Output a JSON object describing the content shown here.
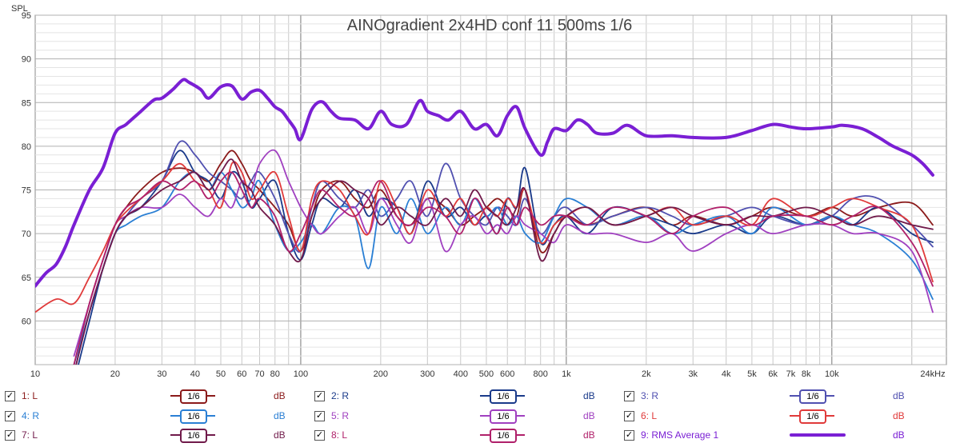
{
  "chart_data": {
    "type": "line",
    "title": "AINOgradient 2x4HD conf 11 500ms 1/6",
    "ylabel": "SPL",
    "x_scale": "log",
    "xlim": [
      10,
      27000
    ],
    "ylim": [
      55,
      95
    ],
    "y_ticks": [
      60,
      65,
      70,
      75,
      80,
      85,
      90,
      95
    ],
    "x_ticks": [
      {
        "v": 10,
        "label": "10"
      },
      {
        "v": 20,
        "label": "20"
      },
      {
        "v": 30,
        "label": "30"
      },
      {
        "v": 40,
        "label": "40"
      },
      {
        "v": 50,
        "label": "50"
      },
      {
        "v": 60,
        "label": "60"
      },
      {
        "v": 70,
        "label": "70"
      },
      {
        "v": 80,
        "label": "80"
      },
      {
        "v": 100,
        "label": "100"
      },
      {
        "v": 200,
        "label": "200"
      },
      {
        "v": 300,
        "label": "300"
      },
      {
        "v": 400,
        "label": "400"
      },
      {
        "v": 500,
        "label": "500"
      },
      {
        "v": 600,
        "label": "600"
      },
      {
        "v": 800,
        "label": "800"
      },
      {
        "v": 1000,
        "label": "1k"
      },
      {
        "v": 2000,
        "label": "2k"
      },
      {
        "v": 3000,
        "label": "3k"
      },
      {
        "v": 4000,
        "label": "4k"
      },
      {
        "v": 5000,
        "label": "5k"
      },
      {
        "v": 6000,
        "label": "6k"
      },
      {
        "v": 7000,
        "label": "7k"
      },
      {
        "v": 8000,
        "label": "8k"
      },
      {
        "v": 10000,
        "label": "10k"
      },
      {
        "v": 24000,
        "label": "24kHz"
      }
    ],
    "grid": true,
    "legend_position": "bottom",
    "series": [
      {
        "name": "1: L",
        "color": "#8b1a1a",
        "width": 1.8,
        "x": [
          14,
          16,
          18,
          20,
          22,
          25,
          30,
          35,
          40,
          45,
          50,
          55,
          60,
          65,
          70,
          80,
          90,
          100,
          110,
          120,
          140,
          160,
          180,
          200,
          230,
          260,
          300,
          350,
          400,
          450,
          500,
          550,
          600,
          650,
          700,
          800,
          900,
          1000,
          1200,
          1500,
          2000,
          2500,
          3000,
          4000,
          5000,
          6000,
          8000,
          10000,
          12000,
          15000,
          20000,
          24000
        ],
        "y": [
          55,
          62,
          67,
          71,
          73,
          75,
          77,
          77.5,
          77,
          76,
          78,
          79.5,
          78,
          76,
          75,
          73,
          71,
          68,
          72,
          75,
          76,
          74,
          73,
          75,
          72,
          71,
          74,
          73,
          71,
          72,
          73,
          74,
          73,
          72,
          75,
          68,
          70,
          72,
          71,
          72,
          73,
          71,
          72,
          71,
          72,
          73,
          72,
          73,
          72,
          73,
          73.5,
          71
        ]
      },
      {
        "name": "2: R",
        "color": "#1a3a8a",
        "width": 1.8,
        "x": [
          14,
          16,
          18,
          20,
          22,
          25,
          30,
          35,
          40,
          45,
          50,
          55,
          60,
          65,
          70,
          80,
          90,
          100,
          110,
          120,
          140,
          160,
          180,
          200,
          230,
          260,
          300,
          350,
          400,
          450,
          500,
          550,
          600,
          650,
          700,
          800,
          900,
          1000,
          1200,
          1500,
          2000,
          2500,
          3000,
          4000,
          5000,
          6000,
          8000,
          10000,
          12000,
          15000,
          20000,
          24000
        ],
        "y": [
          53,
          60,
          66,
          70,
          72,
          73,
          76,
          79.5,
          77,
          76,
          74,
          77,
          76,
          73,
          74,
          76,
          70,
          67,
          71,
          74,
          73,
          75,
          72,
          74,
          73,
          70,
          76,
          72,
          73,
          71,
          72,
          70,
          74,
          73,
          77.5,
          69,
          71,
          72,
          70,
          73,
          72,
          71,
          70,
          71,
          70,
          72,
          71,
          72,
          71,
          73,
          70,
          69
        ]
      },
      {
        "name": "3: R",
        "color": "#5050b0",
        "width": 1.8,
        "x": [
          14,
          16,
          18,
          20,
          22,
          25,
          30,
          35,
          40,
          45,
          50,
          55,
          60,
          65,
          70,
          80,
          90,
          100,
          110,
          120,
          140,
          160,
          180,
          200,
          230,
          260,
          300,
          350,
          400,
          450,
          500,
          550,
          600,
          650,
          700,
          800,
          900,
          1000,
          1200,
          1500,
          2000,
          2500,
          3000,
          4000,
          5000,
          6000,
          8000,
          10000,
          12000,
          15000,
          20000,
          24000
        ],
        "y": [
          54,
          61,
          66,
          70,
          72,
          74,
          76,
          80.5,
          79,
          77,
          76,
          75,
          74,
          76,
          77,
          74,
          70,
          68,
          73,
          76,
          74,
          73,
          75,
          72,
          74,
          76,
          72,
          78,
          74,
          72,
          71,
          73,
          72,
          71,
          74,
          70,
          72,
          73,
          71,
          72,
          73,
          72,
          71,
          72,
          73,
          72,
          71,
          72,
          74,
          74,
          71,
          68.5
        ]
      },
      {
        "name": "4: R",
        "color": "#2a7fd4",
        "width": 1.8,
        "x": [
          14,
          16,
          18,
          20,
          22,
          25,
          30,
          35,
          40,
          45,
          50,
          55,
          60,
          65,
          70,
          80,
          90,
          100,
          110,
          120,
          140,
          160,
          180,
          200,
          230,
          260,
          300,
          350,
          400,
          450,
          500,
          550,
          600,
          650,
          700,
          800,
          900,
          1000,
          1200,
          1500,
          2000,
          2500,
          3000,
          4000,
          5000,
          6000,
          8000,
          10000,
          12000,
          15000,
          20000,
          24000
        ],
        "y": [
          55,
          61,
          66,
          70,
          71,
          72,
          73,
          76,
          77,
          75,
          77,
          75,
          73,
          74,
          76,
          71,
          68,
          69,
          71,
          70,
          73,
          72,
          66,
          73,
          70,
          74,
          70,
          73,
          71,
          74,
          72,
          73,
          71,
          72,
          70,
          69,
          72,
          74,
          73,
          71,
          72,
          70,
          71,
          72,
          70,
          73,
          71,
          72,
          71,
          70,
          67,
          62.5
        ]
      },
      {
        "name": "5: R",
        "color": "#a040c0",
        "width": 1.8,
        "x": [
          14,
          16,
          18,
          20,
          22,
          25,
          30,
          35,
          40,
          45,
          50,
          55,
          60,
          65,
          70,
          80,
          90,
          100,
          110,
          120,
          140,
          160,
          180,
          200,
          230,
          260,
          300,
          350,
          400,
          450,
          500,
          550,
          600,
          650,
          700,
          800,
          900,
          1000,
          1200,
          1500,
          2000,
          2500,
          3000,
          4000,
          5000,
          6000,
          8000,
          10000,
          12000,
          15000,
          20000,
          24000
        ],
        "y": [
          56,
          62,
          67,
          71,
          72,
          73,
          73,
          74.5,
          73,
          72,
          74,
          73,
          76,
          75,
          78,
          79.5,
          76,
          73,
          71,
          70,
          72,
          73,
          70,
          74,
          71,
          69,
          74,
          68,
          71,
          72,
          70,
          71,
          70,
          72,
          71,
          70,
          69,
          71,
          70,
          70,
          69,
          70,
          68,
          70,
          71,
          70,
          71,
          71,
          70,
          70,
          68,
          61
        ]
      },
      {
        "name": "6: L",
        "color": "#e03a3a",
        "width": 1.8,
        "x": [
          10,
          12,
          14,
          16,
          18,
          20,
          22,
          25,
          30,
          35,
          40,
          45,
          50,
          55,
          60,
          65,
          70,
          80,
          90,
          100,
          110,
          120,
          140,
          160,
          180,
          200,
          230,
          260,
          300,
          350,
          400,
          450,
          500,
          550,
          600,
          650,
          700,
          800,
          900,
          1000,
          1200,
          1500,
          2000,
          2500,
          3000,
          4000,
          5000,
          6000,
          8000,
          10000,
          12000,
          15000,
          20000,
          24000
        ],
        "y": [
          61,
          62.5,
          62,
          65,
          68,
          71,
          72.5,
          74,
          76,
          78,
          76,
          75,
          73,
          78,
          77,
          74,
          75,
          77,
          72,
          68,
          74,
          76,
          75,
          72,
          70,
          76,
          73,
          70,
          75,
          72,
          74,
          71,
          73,
          72,
          74,
          73,
          75,
          69,
          71,
          72,
          73,
          71,
          72,
          73,
          71,
          72,
          71,
          74,
          72,
          73,
          74,
          73,
          71,
          64.5
        ]
      },
      {
        "name": "7: L",
        "color": "#701a4a",
        "width": 1.8,
        "x": [
          14,
          16,
          18,
          20,
          22,
          25,
          30,
          35,
          40,
          45,
          50,
          55,
          60,
          65,
          70,
          80,
          90,
          100,
          110,
          120,
          140,
          160,
          180,
          200,
          230,
          260,
          300,
          350,
          400,
          450,
          500,
          550,
          600,
          650,
          700,
          800,
          900,
          1000,
          1200,
          1500,
          2000,
          2500,
          3000,
          4000,
          5000,
          6000,
          8000,
          10000,
          12000,
          15000,
          20000,
          24000
        ],
        "y": [
          54,
          61,
          66,
          70,
          72,
          73,
          75,
          76,
          77,
          75,
          77,
          78.5,
          76,
          75,
          73,
          71,
          68,
          67,
          72,
          74,
          76,
          75,
          74,
          71,
          73,
          72,
          71,
          74,
          72,
          75,
          73,
          72,
          71,
          73,
          75,
          67,
          70,
          72,
          73,
          71,
          72,
          73,
          72,
          71,
          72,
          72,
          73,
          72,
          71,
          72,
          71,
          70.5
        ]
      },
      {
        "name": "8: L",
        "color": "#b0206a",
        "width": 1.8,
        "x": [
          14,
          16,
          18,
          20,
          22,
          25,
          30,
          35,
          40,
          45,
          50,
          55,
          60,
          65,
          70,
          80,
          90,
          100,
          110,
          120,
          140,
          160,
          180,
          200,
          230,
          260,
          300,
          350,
          400,
          450,
          500,
          550,
          600,
          650,
          700,
          800,
          900,
          1000,
          1200,
          1500,
          2000,
          2500,
          3000,
          4000,
          5000,
          6000,
          8000,
          10000,
          12000,
          15000,
          20000,
          24000
        ],
        "y": [
          55,
          62,
          67,
          71,
          73,
          74,
          76,
          75,
          76,
          74,
          76,
          77,
          75,
          73,
          74,
          72,
          68,
          70,
          73,
          75,
          73,
          72,
          74,
          76,
          72,
          71,
          73,
          72,
          70,
          74,
          72,
          70,
          73,
          71,
          73,
          71,
          72,
          72,
          71,
          73,
          72,
          70,
          72,
          73,
          71,
          72,
          72,
          71,
          72,
          73,
          69,
          64
        ]
      },
      {
        "name": "9: RMS Average 1",
        "color": "#7a1fd4",
        "width": 4,
        "x": [
          10,
          11,
          12,
          13,
          14,
          16,
          18,
          20,
          22,
          25,
          28,
          30,
          33,
          36,
          38,
          42,
          45,
          50,
          55,
          60,
          65,
          70,
          75,
          80,
          85,
          90,
          95,
          100,
          110,
          120,
          130,
          140,
          160,
          180,
          200,
          220,
          250,
          280,
          300,
          330,
          360,
          400,
          450,
          500,
          550,
          600,
          650,
          700,
          800,
          850,
          900,
          1000,
          1100,
          1200,
          1300,
          1500,
          1700,
          2000,
          2500,
          3000,
          4000,
          5000,
          6000,
          7000,
          8000,
          10000,
          11000,
          13000,
          15000,
          17000,
          20000,
          22000,
          24000
        ],
        "y": [
          64,
          65.5,
          66.5,
          68.5,
          71,
          75,
          77.5,
          81.5,
          82.5,
          84,
          85.3,
          85.5,
          86.5,
          87.6,
          87.3,
          86.5,
          85.5,
          86.8,
          86.9,
          85.4,
          86.2,
          86.4,
          85.5,
          84.5,
          84,
          83,
          82,
          80.8,
          84.2,
          85.1,
          84,
          83.2,
          83,
          82,
          84,
          82.5,
          82.5,
          85.2,
          84,
          83.5,
          83,
          84,
          82,
          82.5,
          81.2,
          83.5,
          84.5,
          82,
          79,
          80.5,
          82,
          81.8,
          83,
          82.5,
          81.5,
          81.5,
          82.4,
          81.2,
          81.2,
          81,
          81,
          81.8,
          82.5,
          82.2,
          82,
          82.2,
          82.4,
          82,
          81,
          80,
          79,
          78,
          76.7
        ]
      }
    ]
  },
  "legend": {
    "items": [
      {
        "label": "1: L",
        "color": "#8b1a1a",
        "smoothing": "1/6",
        "unit": "dB",
        "checked": "✓"
      },
      {
        "label": "2: R",
        "color": "#1a3a8a",
        "smoothing": "1/6",
        "unit": "dB",
        "checked": "✓"
      },
      {
        "label": "3: R",
        "color": "#5050b0",
        "smoothing": "1/6",
        "unit": "dB",
        "checked": "✓"
      },
      {
        "label": "4: R",
        "color": "#2a7fd4",
        "smoothing": "1/6",
        "unit": "dB",
        "checked": "✓"
      },
      {
        "label": "5: R",
        "color": "#a040c0",
        "smoothing": "1/6",
        "unit": "dB",
        "checked": "✓"
      },
      {
        "label": "6: L",
        "color": "#e03a3a",
        "smoothing": "1/6",
        "unit": "dB",
        "checked": "✓"
      },
      {
        "label": "7: L",
        "color": "#701a4a",
        "smoothing": "1/6",
        "unit": "dB",
        "checked": "✓"
      },
      {
        "label": "8: L",
        "color": "#b0206a",
        "smoothing": "1/6",
        "unit": "dB",
        "checked": "✓"
      },
      {
        "label": "9: RMS Average 1",
        "color": "#7a1fd4",
        "smoothing": "",
        "unit": "dB",
        "checked": "✓"
      }
    ]
  }
}
